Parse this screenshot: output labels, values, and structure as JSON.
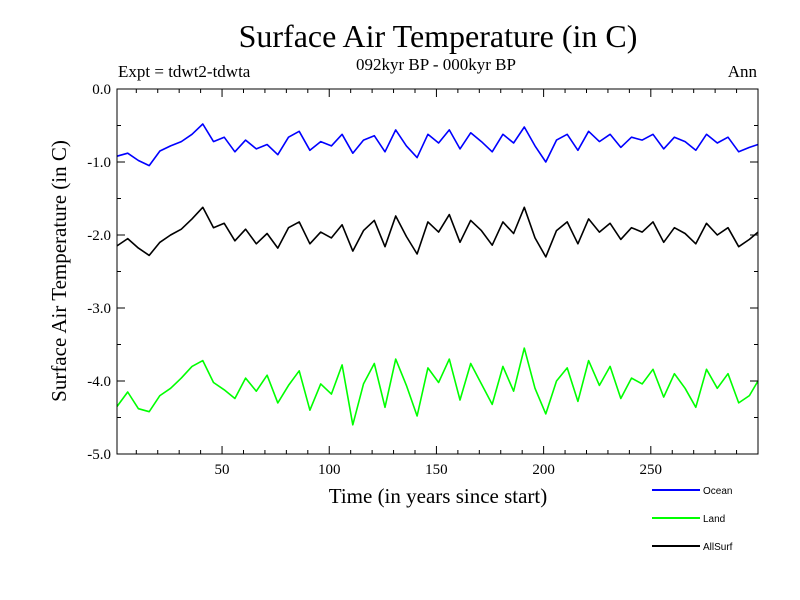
{
  "chart_data": {
    "type": "line",
    "title": "Surface Air Temperature (in C)",
    "subtitle": "092kyr BP - 000kyr BP",
    "experiment_label": "Expt = tdwt2-tdwta",
    "season_label": "Ann",
    "xlabel": "Time (in years since start)",
    "ylabel": "Surface Air Temperature (in C)",
    "xlim": [
      1,
      300
    ],
    "ylim": [
      -5.0,
      0.0
    ],
    "x_ticks": [
      50,
      100,
      150,
      200,
      250
    ],
    "x_tick_labels": [
      "50",
      "100",
      "150",
      "200",
      "250"
    ],
    "y_ticks": [
      0.0,
      -1.0,
      -2.0,
      -3.0,
      -4.0,
      -5.0
    ],
    "y_tick_labels": [
      "0.0",
      "-1.0",
      "-2.0",
      "-3.0",
      "-4.0",
      "-5.0"
    ],
    "grid": false,
    "legend_position": "bottom-right",
    "series": [
      {
        "name": "Ocean",
        "color": "#0000ff",
        "x": [
          1,
          6,
          11,
          16,
          21,
          26,
          31,
          36,
          41,
          46,
          51,
          56,
          61,
          66,
          71,
          76,
          81,
          86,
          91,
          96,
          101,
          106,
          111,
          116,
          121,
          126,
          131,
          136,
          141,
          146,
          151,
          156,
          161,
          166,
          171,
          176,
          181,
          186,
          191,
          196,
          201,
          206,
          211,
          216,
          221,
          226,
          231,
          236,
          241,
          246,
          251,
          256,
          261,
          266,
          271,
          276,
          281,
          286,
          291,
          296,
          300
        ],
        "values": [
          -0.92,
          -0.88,
          -0.98,
          -1.05,
          -0.85,
          -0.78,
          -0.72,
          -0.62,
          -0.48,
          -0.72,
          -0.66,
          -0.86,
          -0.7,
          -0.82,
          -0.76,
          -0.9,
          -0.66,
          -0.58,
          -0.84,
          -0.72,
          -0.78,
          -0.62,
          -0.88,
          -0.7,
          -0.64,
          -0.86,
          -0.56,
          -0.78,
          -0.94,
          -0.62,
          -0.74,
          -0.56,
          -0.82,
          -0.6,
          -0.72,
          -0.86,
          -0.62,
          -0.74,
          -0.52,
          -0.78,
          -1.0,
          -0.7,
          -0.62,
          -0.84,
          -0.58,
          -0.72,
          -0.62,
          -0.8,
          -0.66,
          -0.7,
          -0.62,
          -0.82,
          -0.66,
          -0.72,
          -0.84,
          -0.62,
          -0.74,
          -0.66,
          -0.86,
          -0.8,
          -0.76
        ]
      },
      {
        "name": "AllSurf",
        "color": "#000000",
        "x": [
          1,
          6,
          11,
          16,
          21,
          26,
          31,
          36,
          41,
          46,
          51,
          56,
          61,
          66,
          71,
          76,
          81,
          86,
          91,
          96,
          101,
          106,
          111,
          116,
          121,
          126,
          131,
          136,
          141,
          146,
          151,
          156,
          161,
          166,
          171,
          176,
          181,
          186,
          191,
          196,
          201,
          206,
          211,
          216,
          221,
          226,
          231,
          236,
          241,
          246,
          251,
          256,
          261,
          266,
          271,
          276,
          281,
          286,
          291,
          296,
          300
        ],
        "values": [
          -2.15,
          -2.05,
          -2.18,
          -2.28,
          -2.1,
          -2.0,
          -1.92,
          -1.78,
          -1.62,
          -1.9,
          -1.84,
          -2.08,
          -1.92,
          -2.12,
          -1.98,
          -2.18,
          -1.9,
          -1.82,
          -2.12,
          -1.96,
          -2.04,
          -1.86,
          -2.22,
          -1.94,
          -1.8,
          -2.16,
          -1.74,
          -2.02,
          -2.26,
          -1.82,
          -1.96,
          -1.72,
          -2.1,
          -1.8,
          -1.94,
          -2.14,
          -1.82,
          -1.98,
          -1.62,
          -2.04,
          -2.3,
          -1.94,
          -1.82,
          -2.12,
          -1.78,
          -1.96,
          -1.84,
          -2.06,
          -1.9,
          -1.96,
          -1.82,
          -2.1,
          -1.9,
          -1.98,
          -2.12,
          -1.84,
          -2.0,
          -1.9,
          -2.16,
          -2.06,
          -1.96
        ]
      },
      {
        "name": "Land",
        "color": "#00ff00",
        "x": [
          1,
          6,
          11,
          16,
          21,
          26,
          31,
          36,
          41,
          46,
          51,
          56,
          61,
          66,
          71,
          76,
          81,
          86,
          91,
          96,
          101,
          106,
          111,
          116,
          121,
          126,
          131,
          136,
          141,
          146,
          151,
          156,
          161,
          166,
          171,
          176,
          181,
          186,
          191,
          196,
          201,
          206,
          211,
          216,
          221,
          226,
          231,
          236,
          241,
          246,
          251,
          256,
          261,
          266,
          271,
          276,
          281,
          286,
          291,
          296,
          300
        ],
        "values": [
          -4.35,
          -4.15,
          -4.38,
          -4.42,
          -4.2,
          -4.1,
          -3.96,
          -3.8,
          -3.72,
          -4.02,
          -4.12,
          -4.24,
          -3.96,
          -4.14,
          -3.92,
          -4.3,
          -4.06,
          -3.86,
          -4.4,
          -4.04,
          -4.18,
          -3.78,
          -4.6,
          -4.04,
          -3.76,
          -4.36,
          -3.7,
          -4.06,
          -4.48,
          -3.82,
          -4.02,
          -3.7,
          -4.26,
          -3.76,
          -4.04,
          -4.32,
          -3.8,
          -4.14,
          -3.55,
          -4.1,
          -4.45,
          -4.0,
          -3.82,
          -4.28,
          -3.72,
          -4.06,
          -3.8,
          -4.24,
          -3.96,
          -4.04,
          -3.84,
          -4.22,
          -3.9,
          -4.1,
          -4.36,
          -3.84,
          -4.1,
          -3.9,
          -4.3,
          -4.2,
          -4.0
        ]
      }
    ]
  }
}
